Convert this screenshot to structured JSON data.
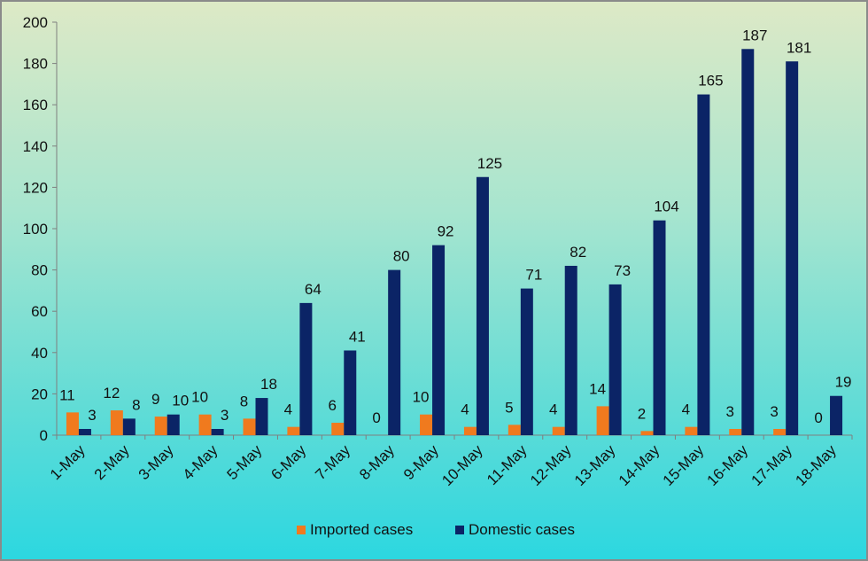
{
  "chart_data": {
    "type": "bar",
    "categories": [
      "1-May",
      "2-May",
      "3-May",
      "4-May",
      "5-May",
      "6-May",
      "7-May",
      "8-May",
      "9-May",
      "10-May",
      "11-May",
      "12-May",
      "13-May",
      "14-May",
      "15-May",
      "16-May",
      "17-May",
      "18-May"
    ],
    "series": [
      {
        "name": "Imported cases",
        "color": "#f07a1e",
        "values": [
          11,
          12,
          9,
          10,
          8,
          4,
          6,
          0,
          10,
          4,
          5,
          4,
          14,
          2,
          4,
          3,
          3,
          0
        ]
      },
      {
        "name": "Domestic cases",
        "color": "#0b2466",
        "values": [
          3,
          8,
          10,
          3,
          18,
          64,
          41,
          80,
          92,
          125,
          71,
          82,
          73,
          104,
          165,
          187,
          181,
          19
        ]
      }
    ],
    "title": "",
    "xlabel": "",
    "ylabel": "",
    "ylim": [
      0,
      200
    ],
    "yticks": [
      0,
      20,
      40,
      60,
      80,
      100,
      120,
      140,
      160,
      180,
      200
    ],
    "grid": false,
    "legend_position": "bottom"
  }
}
